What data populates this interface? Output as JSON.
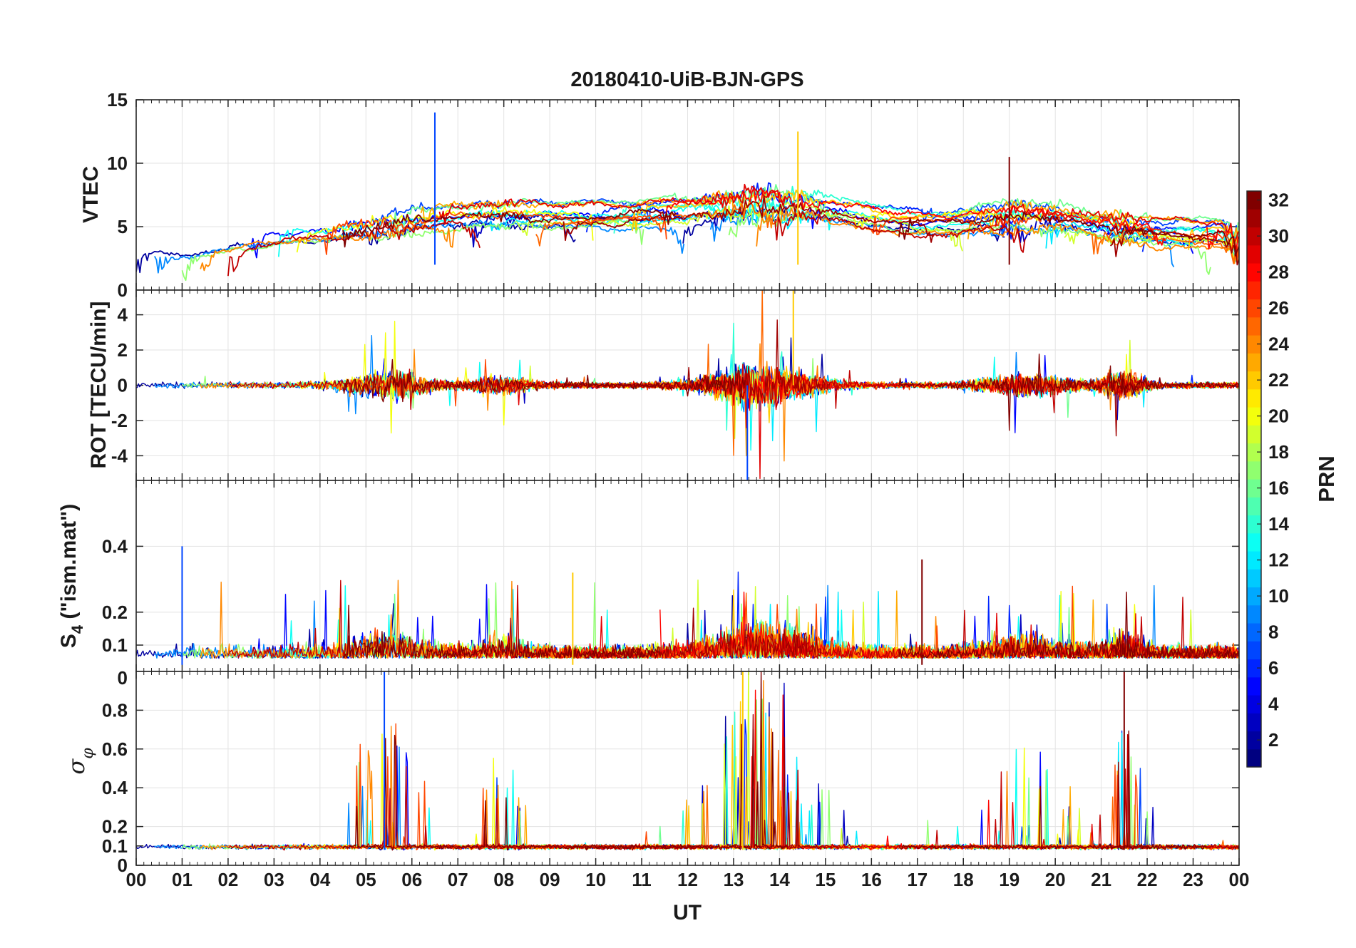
{
  "chart_data": {
    "type": "line",
    "title": "20180410-UiB-BJN-GPS",
    "xlabel": "UT",
    "x_range_hours": [
      0,
      24
    ],
    "x_tick_labels": [
      "00",
      "01",
      "02",
      "03",
      "04",
      "05",
      "06",
      "07",
      "08",
      "09",
      "10",
      "11",
      "12",
      "13",
      "14",
      "15",
      "16",
      "17",
      "18",
      "19",
      "20",
      "21",
      "22",
      "23",
      "00"
    ],
    "grid": true,
    "panels": [
      {
        "name": "vtec",
        "ylabel": "VTEC",
        "ylim": [
          0,
          15
        ],
        "yticks": [
          0,
          5,
          10,
          15
        ],
        "ytick_labels": [
          "0",
          "5",
          "10",
          "15"
        ],
        "typical_range": [
          2,
          8
        ],
        "peaks": [
          {
            "hour": 6.5,
            "value": 14
          },
          {
            "hour": 14.4,
            "value": 12.5
          },
          {
            "hour": 19,
            "value": 10.5
          }
        ]
      },
      {
        "name": "rot",
        "ylabel": "ROT [TECU/min]",
        "ylim": [
          -5.4,
          5.4
        ],
        "yticks": [
          -4,
          -2,
          0,
          2,
          4
        ],
        "ytick_labels": [
          "-4",
          "-2",
          "0",
          "2",
          "4"
        ],
        "typical_range": [
          -1,
          1
        ],
        "peaks": [
          {
            "hour": 13.3,
            "value": -5.4
          },
          {
            "hour": 14.3,
            "value": 5.4
          }
        ]
      },
      {
        "name": "s4",
        "ylabel_main": "S",
        "ylabel_sub": "4",
        "ylabel_rest": " (\"ism.mat\")",
        "ylim": [
          0.02,
          0.6
        ],
        "yticks": [
          0.1,
          0.2,
          0.4
        ],
        "ytick_labels": [
          "0.1",
          "0.2",
          "0.4"
        ],
        "typical_range": [
          0.04,
          0.15
        ],
        "peaks": [
          {
            "hour": 1.0,
            "value": 0.4
          },
          {
            "hour": 9.5,
            "value": 0.32
          },
          {
            "hour": 17.1,
            "value": 0.36
          }
        ]
      },
      {
        "name": "sigma_phi",
        "ylabel_main": "σ",
        "ylabel_sub": "φ",
        "ylim": [
          0,
          1
        ],
        "yticks": [
          0,
          0.1,
          0.2,
          0.4,
          0.6,
          0.8
        ],
        "ytick_labels": [
          "0",
          "0.1",
          "0.2",
          "0.4",
          "0.6",
          "0.8"
        ],
        "top_label": "0",
        "typical_range": [
          0.08,
          0.13
        ],
        "peaks": [
          {
            "hour": 5.4,
            "value": 1.0
          },
          {
            "hour": 13.2,
            "value": 1.0
          },
          {
            "hour": 21.5,
            "value": 1.0
          }
        ]
      }
    ],
    "colorbar": {
      "label": "PRN",
      "range": [
        1,
        32
      ],
      "ticks": [
        2,
        4,
        6,
        8,
        10,
        12,
        14,
        16,
        18,
        20,
        22,
        24,
        26,
        28,
        30,
        32
      ],
      "tick_labels": [
        "2",
        "4",
        "6",
        "8",
        "10",
        "12",
        "14",
        "16",
        "18",
        "20",
        "22",
        "24",
        "26",
        "28",
        "30",
        "32"
      ],
      "colormap": "jet"
    },
    "series_prn": [
      2,
      3,
      5,
      6,
      7,
      9,
      12,
      13,
      14,
      16,
      17,
      19,
      20,
      22,
      23,
      24,
      25,
      26,
      28,
      29,
      30,
      31,
      32
    ]
  }
}
